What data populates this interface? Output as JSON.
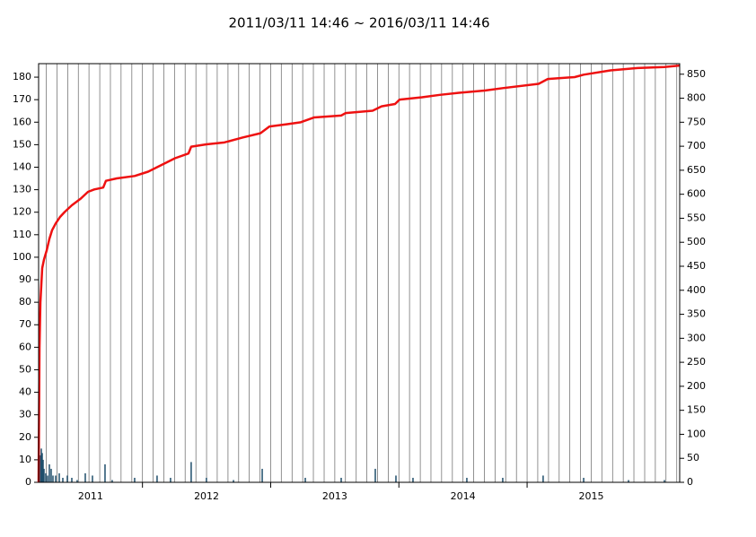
{
  "chart_data": {
    "type": "combo",
    "title": "2011/03/11 14:46 ~ 2016/03/11 14:46",
    "xlim": [
      2011.19,
      2016.19
    ],
    "xticks": [
      {
        "value": 2011,
        "label": "2011"
      },
      {
        "value": 2012,
        "label": "2012"
      },
      {
        "value": 2013,
        "label": "2013"
      },
      {
        "value": 2014,
        "label": "2014"
      },
      {
        "value": 2015,
        "label": "2015"
      }
    ],
    "xgrid": [
      2011.25,
      2011.333,
      2011.417,
      2011.5,
      2011.583,
      2011.667,
      2011.75,
      2011.833,
      2011.917,
      2012,
      2012.083,
      2012.167,
      2012.25,
      2012.333,
      2012.417,
      2012.5,
      2012.583,
      2012.667,
      2012.75,
      2012.833,
      2012.917,
      2013,
      2013.083,
      2013.167,
      2013.25,
      2013.333,
      2013.417,
      2013.5,
      2013.583,
      2013.667,
      2013.75,
      2013.833,
      2013.917,
      2014,
      2014.083,
      2014.167,
      2014.25,
      2014.333,
      2014.417,
      2014.5,
      2014.583,
      2014.667,
      2014.75,
      2014.833,
      2014.917,
      2015,
      2015.083,
      2015.167,
      2015.25,
      2015.333,
      2015.417,
      2015.5,
      2015.583,
      2015.667,
      2015.75,
      2015.833,
      2015.917,
      2016,
      2016.083,
      2016.167
    ],
    "ylim": [
      0,
      186
    ],
    "yticks": [
      0,
      10,
      20,
      30,
      40,
      50,
      60,
      70,
      80,
      90,
      100,
      110,
      120,
      130,
      140,
      150,
      160,
      170,
      180
    ],
    "y2lim": [
      0,
      872
    ],
    "y2ticks": [
      0,
      50,
      100,
      150,
      200,
      250,
      300,
      350,
      400,
      450,
      500,
      550,
      600,
      650,
      700,
      750,
      800,
      850
    ],
    "series": [
      {
        "type": "bar",
        "color": "#1f4e6b",
        "x": [
          2011.204,
          2011.211,
          2011.218,
          2011.225,
          2011.232,
          2011.246,
          2011.26,
          2011.274,
          2011.288,
          2011.302,
          2011.323,
          2011.351,
          2011.379,
          2011.414,
          2011.449,
          2011.491,
          2011.554,
          2011.61,
          2011.708,
          2011.764,
          2011.939,
          2012.114,
          2012.219,
          2012.38,
          2012.499,
          2012.71,
          2012.934,
          2013.27,
          2013.55,
          2013.816,
          2013.977,
          2014.11,
          2014.53,
          2014.81,
          2015.125,
          2015.441,
          2015.791,
          2016.071
        ],
        "values": [
          12,
          15,
          13,
          10,
          6,
          4,
          3,
          8,
          6,
          3,
          3,
          4,
          2,
          3,
          2,
          1,
          4,
          3,
          8,
          1,
          2,
          3,
          2,
          9,
          2,
          1,
          6,
          2,
          2,
          6,
          3,
          2,
          2,
          2,
          3,
          2,
          1,
          1
        ]
      },
      {
        "type": "line",
        "color": "#ee1111",
        "axis": "y2",
        "x": [
          2011.19,
          2011.197,
          2011.204,
          2011.218,
          2011.232,
          2011.253,
          2011.274,
          2011.295,
          2011.323,
          2011.358,
          2011.393,
          2011.449,
          2011.519,
          2011.575,
          2011.624,
          2011.694,
          2011.715,
          2011.799,
          2011.939,
          2012.044,
          2012.149,
          2012.254,
          2012.359,
          2012.38,
          2012.499,
          2012.64,
          2012.78,
          2012.92,
          2012.99,
          2013.13,
          2013.235,
          2013.34,
          2013.55,
          2013.585,
          2013.795,
          2013.865,
          2013.97,
          2014.005,
          2014.18,
          2014.32,
          2014.46,
          2014.67,
          2014.81,
          2015.09,
          2015.161,
          2015.371,
          2015.441,
          2015.651,
          2015.861,
          2016.071,
          2016.19
        ],
        "values": [
          0,
          281,
          375,
          446,
          464,
          483,
          507,
          525,
          539,
          553,
          563,
          577,
          591,
          605,
          610,
          614,
          628,
          633,
          638,
          647,
          661,
          675,
          685,
          699,
          704,
          708,
          718,
          727,
          741,
          746,
          750,
          760,
          764,
          769,
          774,
          783,
          788,
          797,
          802,
          807,
          811,
          816,
          821,
          830,
          840,
          844,
          849,
          858,
          863,
          865,
          868
        ]
      }
    ]
  }
}
